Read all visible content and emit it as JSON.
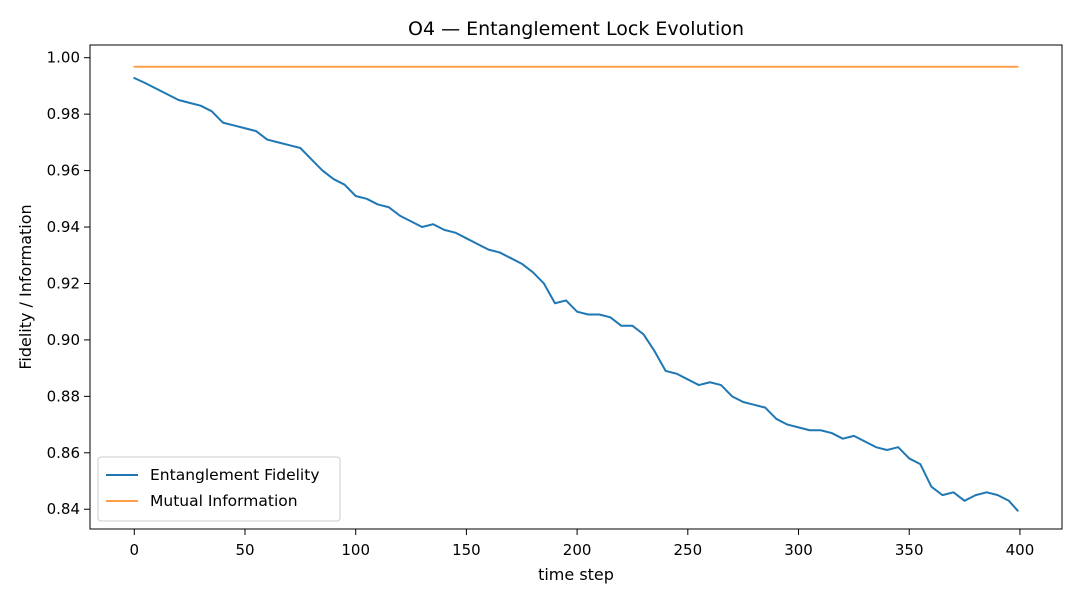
{
  "chart_data": {
    "type": "line",
    "title": "O4 — Entanglement Lock Evolution",
    "xlabel": "time step",
    "ylabel": "Fidelity / Information",
    "xlim": [
      -20,
      419
    ],
    "ylim": [
      0.833,
      1.0045
    ],
    "xticks": [
      0,
      50,
      100,
      150,
      200,
      250,
      300,
      350,
      400
    ],
    "yticks": [
      0.84,
      0.86,
      0.88,
      0.9,
      0.92,
      0.94,
      0.96,
      0.98,
      1.0
    ],
    "grid": false,
    "legend_position": "lower-left",
    "series": [
      {
        "name": "Entanglement Fidelity",
        "color": "#1f77b4",
        "x": [
          0,
          5,
          10,
          15,
          20,
          25,
          30,
          35,
          40,
          45,
          50,
          55,
          60,
          65,
          70,
          75,
          80,
          85,
          90,
          95,
          100,
          105,
          110,
          115,
          120,
          125,
          130,
          135,
          140,
          145,
          150,
          155,
          160,
          165,
          170,
          175,
          180,
          185,
          190,
          195,
          200,
          205,
          210,
          215,
          220,
          225,
          230,
          235,
          240,
          245,
          250,
          255,
          260,
          265,
          270,
          275,
          280,
          285,
          290,
          295,
          300,
          305,
          310,
          315,
          320,
          325,
          330,
          335,
          340,
          345,
          350,
          355,
          360,
          365,
          370,
          375,
          380,
          385,
          390,
          395,
          399
        ],
        "y": [
          0.9928,
          0.991,
          0.989,
          0.987,
          0.985,
          0.984,
          0.983,
          0.981,
          0.977,
          0.976,
          0.975,
          0.974,
          0.971,
          0.97,
          0.969,
          0.968,
          0.964,
          0.96,
          0.957,
          0.955,
          0.951,
          0.95,
          0.948,
          0.947,
          0.944,
          0.942,
          0.94,
          0.941,
          0.939,
          0.938,
          0.936,
          0.934,
          0.932,
          0.931,
          0.929,
          0.927,
          0.924,
          0.92,
          0.913,
          0.914,
          0.91,
          0.909,
          0.909,
          0.908,
          0.905,
          0.905,
          0.902,
          0.896,
          0.889,
          0.888,
          0.886,
          0.884,
          0.885,
          0.884,
          0.88,
          0.878,
          0.877,
          0.876,
          0.872,
          0.87,
          0.869,
          0.868,
          0.868,
          0.867,
          0.865,
          0.866,
          0.864,
          0.862,
          0.861,
          0.862,
          0.858,
          0.856,
          0.848,
          0.845,
          0.846,
          0.843,
          0.845,
          0.846,
          0.845,
          0.843,
          0.8395
        ]
      },
      {
        "name": "Mutual Information",
        "color": "#ff9f4a",
        "x": [
          0,
          399
        ],
        "y": [
          0.9968,
          0.9968
        ]
      }
    ]
  }
}
